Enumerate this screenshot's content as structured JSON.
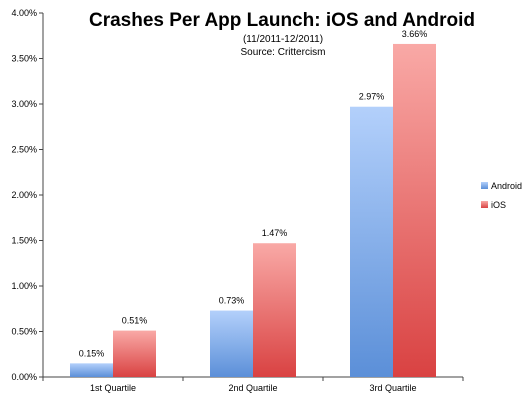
{
  "chart_data": {
    "type": "bar",
    "title": "Crashes Per App Launch: iOS and Android",
    "subtitle_lines": [
      "(11/2011-12/2011)",
      "Source: Crittercism"
    ],
    "categories": [
      "1st Quartile",
      "2nd Quartile",
      "3rd Quartile"
    ],
    "series": [
      {
        "name": "Android",
        "values": [
          0.15,
          0.73,
          2.97
        ],
        "labels": [
          "0.15%",
          "0.73%",
          "2.97%"
        ],
        "color": "#5b8fd8",
        "color_light": "#b3d0fb"
      },
      {
        "name": "iOS",
        "values": [
          0.51,
          1.47,
          3.66
        ],
        "labels": [
          "0.51%",
          "1.47%",
          "3.66%"
        ],
        "color": "#d94242",
        "color_light": "#f9a9a6"
      }
    ],
    "y_ticks": [
      "0.00%",
      "0.50%",
      "1.00%",
      "1.50%",
      "2.00%",
      "2.50%",
      "3.00%",
      "3.50%",
      "4.00%"
    ],
    "ylim": [
      0,
      4
    ],
    "y_unit": "%",
    "legend_position": "right",
    "grid": false
  }
}
